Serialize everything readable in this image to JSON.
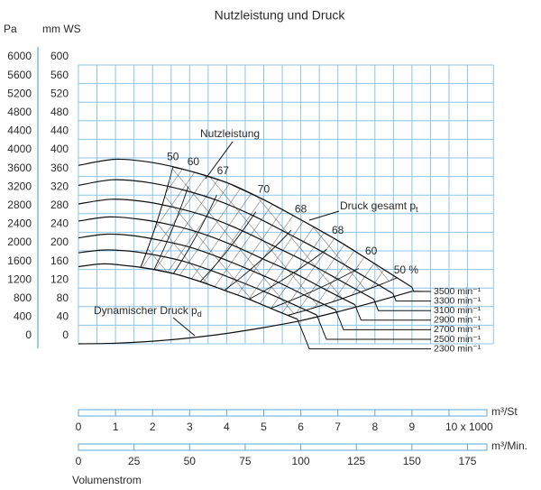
{
  "chart_data": {
    "type": "line",
    "title": "Nutzleistung und Druck",
    "y_label": "mm WS",
    "y2_label": "Pa",
    "ylim": [
      0,
      600
    ],
    "yticks": [
      0,
      40,
      80,
      120,
      160,
      200,
      240,
      280,
      320,
      360,
      400,
      440,
      480,
      520,
      560,
      600
    ],
    "y2lim": [
      0,
      6000
    ],
    "y2ticks": [
      0,
      400,
      800,
      1200,
      1600,
      2000,
      2400,
      2800,
      3200,
      3600,
      4000,
      4400,
      4800,
      5200,
      5600,
      6000
    ],
    "xlim": [
      0,
      11.2
    ],
    "xticks": [
      0,
      1,
      2,
      3,
      4,
      5,
      6,
      7,
      8,
      9,
      {
        "value": 10,
        "label": "10 x 1000"
      }
    ],
    "x_label": "m³/St",
    "x2lim": [
      0,
      186.7
    ],
    "x2ticks": [
      0,
      25,
      50,
      75,
      100,
      125,
      150,
      175
    ],
    "x2_label": "m³/Min.",
    "axis_title": "Volumenstrom",
    "grid": true,
    "series": [
      {
        "name": "3500 min⁻¹",
        "color": "#111111",
        "x": [
          0,
          1,
          2,
          3,
          4,
          5,
          6,
          7,
          8,
          9
        ],
        "values": [
          384,
          397,
          390,
          372,
          347,
          310,
          267,
          222,
          172,
          122
        ]
      },
      {
        "name": "3300 min⁻¹",
        "color": "#111111",
        "x": [
          0,
          0.94,
          1.89,
          2.83,
          3.77,
          4.71,
          5.66,
          6.6,
          7.54,
          8.49
        ],
        "values": [
          341,
          353,
          347,
          331,
          308,
          276,
          237,
          197,
          153,
          108
        ]
      },
      {
        "name": "3100 min⁻¹",
        "color": "#111111",
        "x": [
          0,
          0.89,
          1.77,
          2.66,
          3.54,
          4.43,
          5.31,
          6.2,
          7.09,
          7.97
        ],
        "values": [
          301,
          311,
          306,
          292,
          272,
          243,
          209,
          174,
          135,
          96
        ]
      },
      {
        "name": "2900 min⁻¹",
        "color": "#111111",
        "x": [
          0,
          0.83,
          1.66,
          2.49,
          3.31,
          4.14,
          4.97,
          5.8,
          6.63,
          7.46
        ],
        "values": [
          264,
          273,
          268,
          256,
          238,
          213,
          183,
          153,
          118,
          84
        ]
      },
      {
        "name": "2700 min⁻¹",
        "color": "#111111",
        "x": [
          0,
          0.77,
          1.54,
          2.31,
          3.09,
          3.86,
          4.63,
          5.4,
          6.17,
          6.94
        ],
        "values": [
          228,
          236,
          232,
          221,
          206,
          184,
          159,
          132,
          102,
          73
        ]
      },
      {
        "name": "2500 min⁻¹",
        "color": "#111111",
        "x": [
          0,
          0.71,
          1.43,
          2.14,
          2.86,
          3.57,
          4.29,
          5,
          5.71,
          6.43
        ],
        "values": [
          196,
          202,
          199,
          190,
          177,
          158,
          136,
          113,
          88,
          62
        ]
      },
      {
        "name": "2300 min⁻¹",
        "color": "#111111",
        "x": [
          0,
          0.66,
          1.31,
          1.97,
          2.63,
          3.29,
          3.94,
          4.6,
          5.26,
          5.91
        ],
        "values": [
          166,
          172,
          168,
          161,
          150,
          134,
          115,
          96,
          74,
          53
        ]
      }
    ],
    "dynamic_pressure": {
      "name": "Dynamischer Druck p",
      "name_subscript": "d",
      "color": "#111111",
      "x": [
        0,
        1,
        2,
        3,
        4,
        5,
        6,
        7,
        8,
        9
      ],
      "values": [
        0,
        1.4,
        5.6,
        12.6,
        22.4,
        35,
        50,
        69,
        90,
        113
      ]
    },
    "total_pressure_label": {
      "text": "Druck gesamt p",
      "subscript": "t"
    },
    "power_label": "Nutzleistung",
    "efficiency_labels": [
      "50",
      "60",
      "67",
      "70",
      "68",
      "68",
      "60",
      "50 %"
    ]
  }
}
